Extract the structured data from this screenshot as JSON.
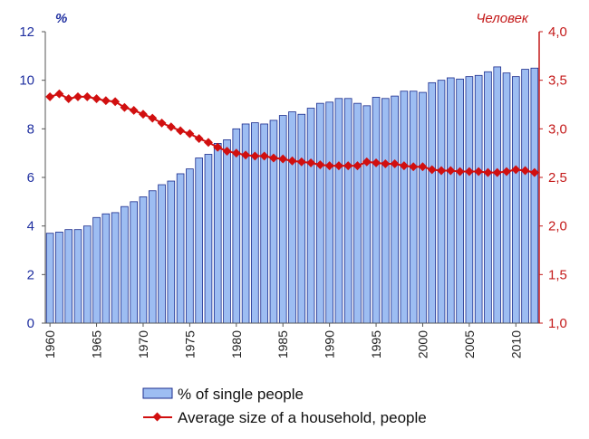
{
  "chart_data": {
    "type": "bar",
    "x": [
      1960,
      1961,
      1962,
      1963,
      1964,
      1965,
      1966,
      1967,
      1968,
      1969,
      1970,
      1971,
      1972,
      1973,
      1974,
      1975,
      1976,
      1977,
      1978,
      1979,
      1980,
      1981,
      1982,
      1983,
      1984,
      1985,
      1986,
      1987,
      1988,
      1989,
      1990,
      1991,
      1992,
      1993,
      1994,
      1995,
      1996,
      1997,
      1998,
      1999,
      2000,
      2001,
      2002,
      2003,
      2004,
      2005,
      2006,
      2007,
      2008,
      2009,
      2010,
      2011,
      2012
    ],
    "x_ticks": [
      "1960",
      "1965",
      "1970",
      "1975",
      "1980",
      "1985",
      "1990",
      "1995",
      "2000",
      "2005",
      "2010"
    ],
    "left_axis": {
      "unit_label": "%",
      "ylim": [
        0,
        12
      ],
      "ticks": [
        "0",
        "2",
        "4",
        "6",
        "8",
        "10",
        "12"
      ]
    },
    "right_axis": {
      "unit_label": "Человек",
      "ylim": [
        1.0,
        4.0
      ],
      "ticks": [
        "1,0",
        "1,5",
        "2,0",
        "2,5",
        "3,0",
        "3,5",
        "4,0"
      ]
    },
    "series": [
      {
        "name": "% of single people",
        "type": "bar",
        "axis": "left",
        "color": "#9dbdf2",
        "edge_color": "#1a2b8c",
        "values": [
          3.7,
          3.75,
          3.85,
          3.85,
          4.0,
          4.35,
          4.5,
          4.55,
          4.8,
          5.0,
          5.2,
          5.45,
          5.7,
          5.85,
          6.15,
          6.35,
          6.8,
          6.95,
          7.4,
          7.55,
          8.0,
          8.2,
          8.25,
          8.2,
          8.35,
          8.55,
          8.7,
          8.6,
          8.85,
          9.05,
          9.1,
          9.25,
          9.25,
          9.05,
          8.95,
          9.3,
          9.25,
          9.35,
          9.55,
          9.55,
          9.5,
          9.9,
          10.0,
          10.1,
          10.05,
          10.15,
          10.2,
          10.35,
          10.55,
          10.3,
          10.15,
          10.45,
          10.5
        ]
      },
      {
        "name": "Average size of a household, people",
        "type": "line",
        "axis": "right",
        "color": "#d10f0f",
        "values": [
          3.33,
          3.36,
          3.31,
          3.33,
          3.33,
          3.31,
          3.29,
          3.28,
          3.22,
          3.19,
          3.15,
          3.11,
          3.06,
          3.02,
          2.98,
          2.95,
          2.9,
          2.86,
          2.81,
          2.77,
          2.75,
          2.73,
          2.72,
          2.72,
          2.7,
          2.69,
          2.67,
          2.66,
          2.65,
          2.63,
          2.62,
          2.62,
          2.62,
          2.62,
          2.66,
          2.65,
          2.64,
          2.64,
          2.62,
          2.61,
          2.61,
          2.58,
          2.57,
          2.57,
          2.56,
          2.56,
          2.56,
          2.55,
          2.55,
          2.56,
          2.58,
          2.57,
          2.55
        ]
      }
    ],
    "grid": false,
    "legend_position": "bottom"
  }
}
